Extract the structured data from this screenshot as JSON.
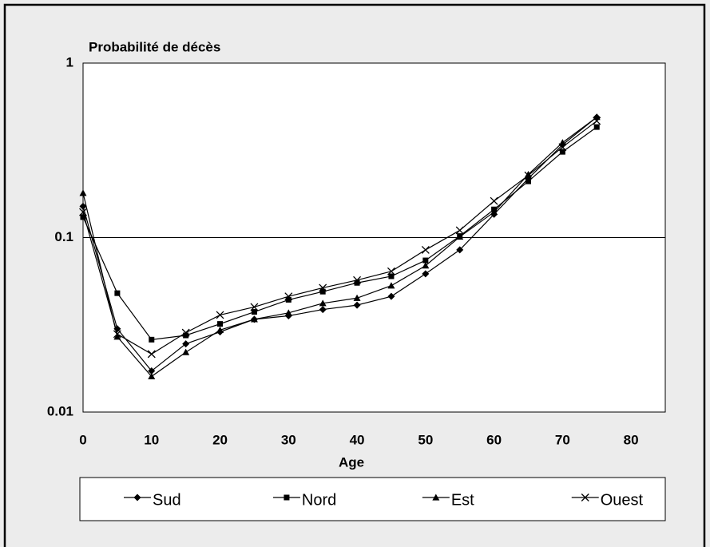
{
  "chart_data": {
    "type": "line",
    "y_label": "Probabilité de décès",
    "x_label": "Age",
    "x": [
      0,
      5,
      10,
      15,
      20,
      25,
      30,
      35,
      40,
      45,
      50,
      55,
      60,
      65,
      70,
      75
    ],
    "series": [
      {
        "name": "Sud",
        "color": "#000000",
        "marker": "diamond",
        "values": [
          0.151,
          0.03,
          0.0172,
          0.0246,
          0.0288,
          0.034,
          0.0356,
          0.0387,
          0.041,
          0.046,
          0.062,
          0.085,
          0.136,
          0.218,
          0.34,
          0.49
        ]
      },
      {
        "name": "Nord",
        "color": "#000000",
        "marker": "square",
        "values": [
          0.131,
          0.048,
          0.026,
          0.0275,
          0.032,
          0.0375,
          0.044,
          0.049,
          0.055,
          0.06,
          0.074,
          0.102,
          0.145,
          0.21,
          0.31,
          0.43
        ]
      },
      {
        "name": "Est",
        "color": "#000000",
        "marker": "triangle",
        "values": [
          0.18,
          0.027,
          0.016,
          0.022,
          0.0295,
          0.034,
          0.037,
          0.042,
          0.045,
          0.053,
          0.069,
          0.101,
          0.14,
          0.23,
          0.35,
          0.49
        ]
      },
      {
        "name": "Ouest",
        "color": "#000000",
        "marker": "x",
        "values": [
          0.14,
          0.028,
          0.0215,
          0.0285,
          0.036,
          0.04,
          0.046,
          0.0515,
          0.057,
          0.064,
          0.085,
          0.11,
          0.162,
          0.227,
          0.33,
          0.466
        ]
      }
    ],
    "xlim": [
      0,
      85
    ],
    "xticks": [
      0,
      10,
      20,
      30,
      40,
      50,
      60,
      70,
      80
    ],
    "ylim": [
      0.01,
      1
    ],
    "yticks": [
      0.01,
      0.1,
      1
    ],
    "log_y": true,
    "grid": true,
    "legend": "bottom"
  }
}
